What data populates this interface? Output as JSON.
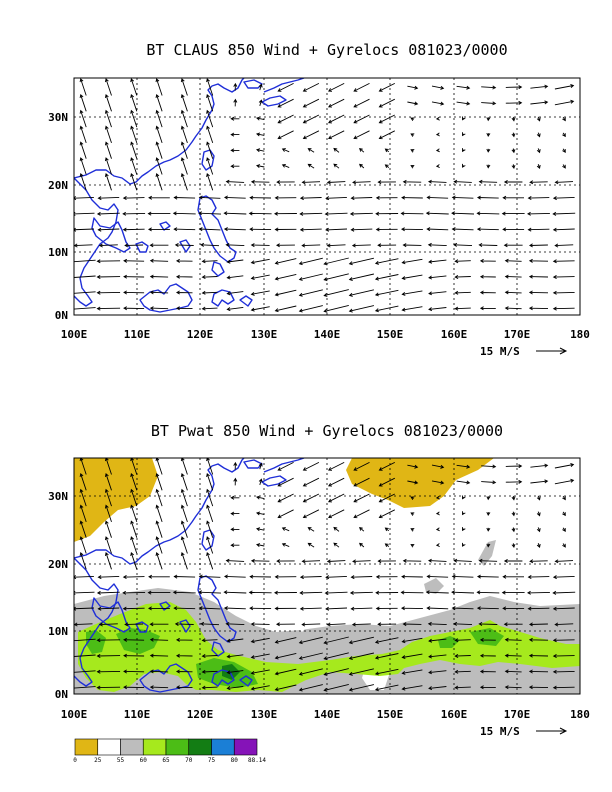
{
  "chart_data": [
    {
      "type": "vector-field",
      "title": "BT CLAUS 850 Wind + Gyrelocs 081023/0000",
      "x_ticks": [
        "100E",
        "110E",
        "120E",
        "130E",
        "140E",
        "150E",
        "160E",
        "170E",
        "180"
      ],
      "y_ticks": [
        "0N",
        "10N",
        "20N",
        "30N"
      ],
      "xlim": [
        100,
        180
      ],
      "ylim": [
        0,
        36
      ],
      "grid": true,
      "reference_vector_label": "15 M/S",
      "reference_vector_speed": 15
    },
    {
      "type": "vector-field-over-filled-contour",
      "title": "BT Pwat 850 Wind + Gyrelocs 081023/0000",
      "x_ticks": [
        "100E",
        "110E",
        "120E",
        "130E",
        "140E",
        "150E",
        "160E",
        "170E",
        "180"
      ],
      "y_ticks": [
        "0N",
        "10N",
        "20N",
        "30N"
      ],
      "xlim": [
        100,
        180
      ],
      "ylim": [
        0,
        36
      ],
      "grid": true,
      "reference_vector_label": "15 M/S",
      "reference_vector_speed": 15,
      "colorbar": {
        "levels": [
          "0",
          "25",
          "55",
          "60",
          "65",
          "70",
          "75",
          "80",
          "88.14"
        ],
        "colors": [
          "#e0b615",
          "#ffffff",
          "#bdbdbd",
          "#a6e91d",
          "#4cbd16",
          "#137d14",
          "#1b7fd6",
          "#8513b8"
        ]
      }
    }
  ]
}
